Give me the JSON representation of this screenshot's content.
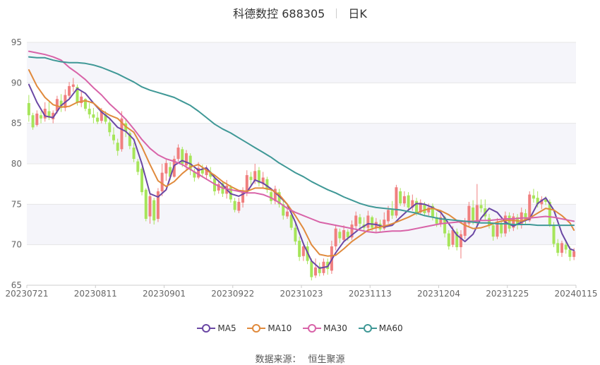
{
  "header": {
    "stock_label": "科德数控 688305",
    "period_label": "日K"
  },
  "footer": {
    "source_label": "数据来源：",
    "source_name": "恒生聚源"
  },
  "chart_data": {
    "type": "candlestick",
    "ylim": [
      65,
      95
    ],
    "y_ticks": [
      65,
      70,
      75,
      80,
      85,
      90,
      95
    ],
    "x_ticks": [
      "20230721",
      "20230811",
      "20230901",
      "20230922",
      "20231023",
      "20231113",
      "20231204",
      "20231225",
      "20240115"
    ],
    "grid": true,
    "legend_position": "bottom",
    "colors": {
      "up": "#f07f7f",
      "down": "#a6e55a",
      "grid": "#e6e6e6",
      "band": "#f5f5fa",
      "axis_text": "#666666"
    },
    "candles": [
      [
        87.5,
        86.0,
        88.5,
        85.2
      ],
      [
        86.0,
        84.5,
        86.3,
        84.2
      ],
      [
        84.8,
        86.2,
        86.6,
        84.6
      ],
      [
        86.0,
        85.6,
        86.5,
        85.0
      ],
      [
        85.6,
        86.8,
        87.6,
        85.2
      ],
      [
        86.5,
        85.7,
        87.6,
        85.4
      ],
      [
        85.5,
        86.3,
        86.6,
        85.0
      ],
      [
        86.5,
        88.0,
        88.4,
        86.2
      ],
      [
        87.8,
        86.9,
        88.6,
        86.4
      ],
      [
        86.9,
        88.5,
        89.2,
        86.5
      ],
      [
        88.4,
        89.6,
        90.1,
        88.0
      ],
      [
        89.5,
        89.8,
        90.6,
        88.9
      ],
      [
        89.5,
        87.6,
        89.8,
        87.2
      ],
      [
        87.5,
        88.3,
        88.9,
        87.0
      ],
      [
        88.0,
        86.8,
        88.1,
        86.5
      ],
      [
        86.8,
        86.1,
        87.5,
        85.6
      ],
      [
        86.1,
        85.7,
        86.9,
        85.0
      ],
      [
        85.7,
        85.2,
        86.4,
        84.9
      ],
      [
        85.3,
        86.5,
        86.9,
        85.0
      ],
      [
        86.1,
        85.2,
        86.5,
        84.9
      ],
      [
        85.1,
        83.9,
        85.6,
        83.4
      ],
      [
        83.6,
        82.9,
        84.5,
        82.4
      ],
      [
        82.6,
        81.6,
        83.1,
        81.0
      ],
      [
        81.8,
        85.6,
        86.5,
        81.5
      ],
      [
        85.0,
        84.0,
        85.6,
        83.3
      ],
      [
        83.8,
        82.2,
        84.0,
        81.8
      ],
      [
        82.0,
        80.6,
        82.6,
        80.2
      ],
      [
        80.3,
        79.0,
        80.6,
        78.6
      ],
      [
        79.4,
        76.5,
        79.6,
        76.1
      ],
      [
        76.8,
        73.2,
        77.0,
        72.9
      ],
      [
        73.5,
        76.0,
        76.2,
        72.6
      ],
      [
        75.5,
        73.0,
        75.8,
        72.5
      ],
      [
        73.2,
        76.6,
        77.0,
        72.8
      ],
      [
        76.6,
        78.9,
        80.0,
        76.0
      ],
      [
        78.8,
        80.1,
        80.5,
        77.9
      ],
      [
        79.6,
        78.4,
        80.2,
        78.0
      ],
      [
        78.4,
        80.6,
        81.0,
        78.3
      ],
      [
        80.6,
        82.0,
        82.4,
        80.3
      ],
      [
        81.8,
        80.0,
        82.1,
        79.6
      ],
      [
        79.8,
        81.3,
        81.7,
        79.2
      ],
      [
        81.0,
        79.3,
        81.3,
        78.6
      ],
      [
        79.0,
        78.3,
        79.4,
        77.8
      ],
      [
        78.3,
        79.5,
        80.2,
        78.1
      ],
      [
        79.3,
        78.8,
        79.9,
        78.3
      ],
      [
        78.6,
        79.4,
        79.8,
        78.0
      ],
      [
        79.0,
        78.4,
        79.6,
        78.1
      ],
      [
        78.2,
        76.6,
        78.7,
        76.1
      ],
      [
        76.7,
        77.5,
        77.9,
        76.3
      ],
      [
        77.6,
        76.3,
        77.8,
        75.9
      ],
      [
        76.3,
        77.3,
        78.0,
        75.7
      ],
      [
        77.1,
        75.6,
        77.4,
        75.2
      ],
      [
        75.4,
        74.3,
        75.8,
        74.0
      ],
      [
        74.2,
        75.3,
        75.8,
        73.9
      ],
      [
        75.2,
        76.7,
        77.1,
        74.6
      ],
      [
        76.5,
        78.6,
        79.2,
        76.0
      ],
      [
        78.4,
        78.0,
        79.0,
        77.4
      ],
      [
        77.9,
        79.1,
        80.0,
        77.5
      ],
      [
        79.2,
        77.6,
        79.6,
        77.2
      ],
      [
        77.5,
        78.3,
        79.0,
        77.0
      ],
      [
        78.1,
        76.8,
        78.4,
        76.4
      ],
      [
        76.5,
        75.4,
        76.9,
        75.0
      ],
      [
        75.4,
        76.9,
        77.3,
        75.0
      ],
      [
        76.5,
        75.0,
        76.9,
        74.6
      ],
      [
        75.0,
        73.6,
        75.5,
        73.1
      ],
      [
        73.5,
        74.1,
        74.9,
        73.2
      ],
      [
        73.7,
        72.1,
        74.2,
        71.8
      ],
      [
        72.1,
        70.4,
        72.7,
        70.0
      ],
      [
        70.5,
        68.5,
        71.0,
        68.0
      ],
      [
        68.6,
        69.8,
        70.2,
        68.0
      ],
      [
        69.8,
        68.0,
        70.4,
        67.6
      ],
      [
        68.0,
        66.0,
        68.3,
        65.6
      ],
      [
        66.2,
        67.2,
        68.3,
        65.9
      ],
      [
        67.3,
        66.5,
        67.8,
        66.1
      ],
      [
        66.5,
        67.9,
        68.3,
        66.2
      ],
      [
        67.9,
        67.0,
        68.3,
        66.3
      ],
      [
        66.8,
        69.8,
        70.5,
        66.4
      ],
      [
        69.8,
        72.0,
        72.5,
        69.3
      ],
      [
        71.6,
        70.8,
        72.0,
        70.2
      ],
      [
        70.6,
        71.8,
        72.4,
        70.3
      ],
      [
        71.6,
        70.9,
        71.9,
        70.5
      ],
      [
        70.9,
        72.5,
        73.0,
        70.6
      ],
      [
        72.3,
        73.6,
        74.1,
        71.9
      ],
      [
        73.4,
        72.6,
        73.8,
        72.1
      ],
      [
        72.5,
        72.1,
        73.4,
        71.6
      ],
      [
        72.1,
        73.6,
        74.2,
        71.8
      ],
      [
        73.4,
        72.1,
        73.6,
        71.7
      ],
      [
        72.1,
        72.8,
        73.3,
        71.5
      ],
      [
        72.6,
        71.9,
        73.1,
        71.6
      ],
      [
        72.0,
        73.1,
        74.0,
        71.8
      ],
      [
        72.9,
        74.3,
        74.8,
        72.6
      ],
      [
        74.3,
        73.6,
        75.4,
        73.2
      ],
      [
        73.6,
        77.1,
        77.4,
        73.3
      ],
      [
        76.6,
        75.1,
        77.0,
        74.8
      ],
      [
        75.1,
        76.0,
        76.6,
        74.7
      ],
      [
        76.1,
        74.6,
        76.5,
        74.2
      ],
      [
        74.6,
        75.5,
        76.2,
        74.2
      ],
      [
        75.4,
        74.0,
        75.8,
        73.6
      ],
      [
        74.0,
        75.2,
        75.6,
        73.7
      ],
      [
        75.0,
        73.9,
        75.3,
        73.5
      ],
      [
        74.0,
        74.6,
        75.1,
        73.6
      ],
      [
        74.8,
        73.4,
        75.1,
        73.0
      ],
      [
        73.4,
        72.6,
        74.0,
        72.2
      ],
      [
        72.6,
        73.4,
        73.9,
        72.2
      ],
      [
        73.4,
        71.4,
        73.6,
        70.9
      ],
      [
        71.4,
        69.8,
        71.8,
        69.4
      ],
      [
        70.0,
        71.8,
        72.3,
        69.7
      ],
      [
        71.6,
        69.7,
        72.0,
        69.3
      ],
      [
        69.7,
        71.3,
        71.8,
        68.3
      ],
      [
        71.1,
        72.8,
        73.3,
        70.7
      ],
      [
        72.6,
        74.8,
        75.3,
        72.3
      ],
      [
        74.6,
        72.9,
        75.5,
        72.5
      ],
      [
        72.8,
        74.9,
        77.5,
        72.4
      ],
      [
        74.9,
        74.5,
        75.6,
        74.0
      ],
      [
        74.5,
        73.5,
        75.6,
        73.1
      ],
      [
        73.3,
        72.4,
        73.8,
        72.0
      ],
      [
        72.4,
        71.0,
        72.8,
        70.5
      ],
      [
        71.0,
        72.8,
        73.3,
        70.7
      ],
      [
        72.6,
        71.4,
        73.2,
        70.9
      ],
      [
        71.4,
        73.6,
        74.1,
        71.0
      ],
      [
        73.6,
        72.0,
        74.0,
        71.6
      ],
      [
        72.1,
        73.5,
        73.9,
        71.7
      ],
      [
        73.4,
        72.4,
        73.8,
        71.9
      ],
      [
        72.4,
        74.0,
        74.6,
        72.0
      ],
      [
        73.9,
        73.0,
        74.4,
        72.6
      ],
      [
        73.0,
        76.2,
        76.6,
        72.8
      ],
      [
        76.1,
        75.7,
        76.9,
        75.2
      ],
      [
        75.8,
        75.0,
        76.6,
        74.6
      ],
      [
        75.0,
        75.6,
        76.0,
        74.4
      ],
      [
        75.6,
        75.3,
        76.0,
        74.9
      ],
      [
        75.3,
        72.5,
        75.6,
        72.2
      ],
      [
        72.4,
        70.1,
        72.8,
        69.7
      ],
      [
        70.2,
        69.0,
        70.7,
        68.6
      ],
      [
        69.0,
        70.2,
        70.5,
        68.5
      ],
      [
        70.0,
        69.4,
        70.6,
        68.9
      ],
      [
        69.4,
        68.5,
        69.8,
        68.0
      ],
      [
        68.5,
        69.2,
        69.6,
        68.1
      ]
    ],
    "series": [
      {
        "name": "MA5",
        "color": "#6a47a4",
        "x": [
          0,
          2,
          4,
          6,
          8,
          10,
          12,
          14,
          16,
          18,
          20,
          22,
          24,
          26,
          28,
          30,
          32,
          34,
          36,
          38,
          40,
          42,
          44,
          46,
          48,
          50,
          52,
          54,
          56,
          58,
          60,
          62,
          64,
          66,
          68,
          70,
          72,
          74,
          76,
          78,
          80,
          82,
          84,
          86,
          88,
          90,
          92,
          94,
          96,
          98,
          100,
          102,
          104,
          106,
          108,
          110,
          112,
          114,
          116,
          118,
          120,
          122,
          124,
          126,
          128,
          130,
          132,
          134,
          135
        ],
        "values": [
          89.8,
          87.6,
          85.9,
          85.7,
          87.2,
          88.0,
          89.3,
          88.7,
          87.5,
          86.4,
          85.6,
          84.5,
          84.0,
          83.0,
          80.0,
          76.3,
          75.9,
          76.8,
          79.8,
          80.4,
          80.0,
          79.2,
          79.5,
          78.3,
          77.4,
          76.3,
          76.0,
          76.5,
          78.0,
          77.6,
          76.9,
          76.0,
          75.0,
          72.8,
          70.1,
          68.0,
          67.1,
          67.3,
          69.0,
          70.4,
          71.2,
          72.0,
          72.6,
          72.5,
          72.2,
          72.4,
          73.4,
          74.3,
          75.1,
          75.0,
          74.6,
          74.0,
          72.6,
          71.2,
          70.4,
          71.3,
          73.3,
          74.5,
          74.0,
          72.8,
          72.3,
          72.8,
          73.2,
          75.1,
          75.8,
          74.3,
          71.4,
          69.5,
          69.3
        ]
      },
      {
        "name": "MA10",
        "color": "#e08a3c",
        "x": [
          0,
          2,
          4,
          6,
          8,
          10,
          12,
          14,
          16,
          18,
          20,
          22,
          24,
          26,
          28,
          30,
          32,
          34,
          36,
          38,
          40,
          42,
          44,
          46,
          48,
          50,
          52,
          54,
          56,
          58,
          60,
          62,
          64,
          66,
          68,
          70,
          72,
          74,
          76,
          78,
          80,
          82,
          84,
          86,
          88,
          90,
          92,
          94,
          96,
          98,
          100,
          102,
          104,
          106,
          108,
          110,
          112,
          114,
          116,
          118,
          120,
          122,
          124,
          126,
          128,
          130,
          132,
          134,
          135
        ],
        "values": [
          91.6,
          89.6,
          88.2,
          87.3,
          87.0,
          87.1,
          87.6,
          87.8,
          87.5,
          86.6,
          86.0,
          85.6,
          84.6,
          83.9,
          82.1,
          79.9,
          77.9,
          77.2,
          77.8,
          78.8,
          79.6,
          79.9,
          79.2,
          78.6,
          77.8,
          77.2,
          76.7,
          76.6,
          77.0,
          77.0,
          76.8,
          76.2,
          75.0,
          73.6,
          72.0,
          70.0,
          68.8,
          68.6,
          68.7,
          69.5,
          70.4,
          71.1,
          71.8,
          72.1,
          72.3,
          72.6,
          73.0,
          73.4,
          73.9,
          74.3,
          74.5,
          74.2,
          73.7,
          73.0,
          72.4,
          72.0,
          72.1,
          72.4,
          72.8,
          73.0,
          73.0,
          72.9,
          73.3,
          73.9,
          74.5,
          74.3,
          73.6,
          72.7,
          71.8
        ]
      },
      {
        "name": "MA30",
        "color": "#d863a8",
        "x": [
          0,
          2,
          4,
          6,
          8,
          10,
          12,
          14,
          16,
          18,
          20,
          22,
          24,
          26,
          28,
          30,
          32,
          34,
          36,
          38,
          40,
          42,
          44,
          46,
          48,
          50,
          52,
          54,
          56,
          58,
          60,
          62,
          64,
          66,
          68,
          70,
          72,
          74,
          76,
          78,
          80,
          82,
          84,
          86,
          88,
          90,
          92,
          94,
          96,
          98,
          100,
          102,
          104,
          106,
          108,
          110,
          112,
          114,
          116,
          118,
          120,
          122,
          124,
          126,
          128,
          130,
          132,
          134,
          135
        ],
        "values": [
          93.9,
          93.7,
          93.5,
          93.2,
          92.8,
          91.9,
          91.2,
          90.4,
          89.4,
          88.5,
          87.4,
          86.5,
          85.5,
          84.3,
          83.0,
          81.9,
          81.1,
          80.6,
          80.3,
          79.9,
          79.3,
          78.7,
          78.1,
          77.5,
          77.0,
          76.8,
          76.6,
          76.4,
          76.4,
          76.2,
          75.8,
          75.2,
          74.5,
          74.0,
          73.6,
          73.2,
          72.8,
          72.6,
          72.4,
          72.2,
          72.0,
          71.8,
          71.6,
          71.5,
          71.6,
          71.7,
          71.7,
          71.8,
          72.0,
          72.2,
          72.4,
          72.6,
          72.7,
          72.8,
          72.9,
          72.9,
          73.0,
          73.0,
          73.1,
          73.2,
          73.2,
          73.3,
          73.3,
          73.4,
          73.5,
          73.4,
          73.2,
          73.0,
          72.9
        ]
      },
      {
        "name": "MA60",
        "color": "#3f9896",
        "x": [
          0,
          2,
          4,
          6,
          8,
          10,
          12,
          14,
          16,
          18,
          20,
          22,
          24,
          26,
          28,
          30,
          32,
          34,
          36,
          38,
          40,
          42,
          44,
          46,
          48,
          50,
          52,
          54,
          56,
          58,
          60,
          62,
          64,
          66,
          68,
          70,
          72,
          74,
          76,
          78,
          80,
          82,
          84,
          86,
          88,
          90,
          92,
          94,
          96,
          98,
          100,
          102,
          104,
          106,
          108,
          110,
          112,
          114,
          116,
          118,
          120,
          122,
          124,
          126,
          128,
          130,
          132,
          134,
          135
        ],
        "values": [
          93.2,
          93.1,
          93.1,
          92.8,
          92.6,
          92.5,
          92.5,
          92.4,
          92.2,
          91.9,
          91.5,
          91.1,
          90.6,
          90.1,
          89.5,
          89.1,
          88.8,
          88.5,
          88.2,
          87.7,
          87.2,
          86.5,
          85.7,
          84.9,
          84.3,
          83.8,
          83.2,
          82.6,
          82.0,
          81.4,
          80.8,
          80.1,
          79.5,
          78.9,
          78.4,
          77.8,
          77.3,
          76.8,
          76.4,
          75.9,
          75.5,
          75.1,
          74.8,
          74.6,
          74.5,
          74.4,
          74.3,
          74.1,
          73.9,
          73.6,
          73.4,
          73.2,
          73.1,
          73.0,
          72.9,
          72.8,
          72.7,
          72.7,
          72.6,
          72.6,
          72.5,
          72.5,
          72.5,
          72.4,
          72.4,
          72.4,
          72.4,
          72.4,
          72.4
        ]
      }
    ]
  }
}
